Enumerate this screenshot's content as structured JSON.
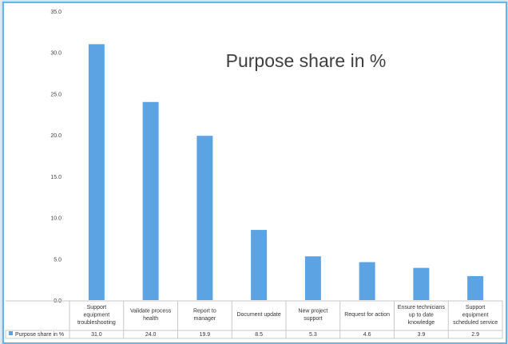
{
  "chart_data": {
    "type": "bar",
    "title": "Purpose share in %",
    "categories": [
      "Support equipment troubleshooting",
      "Validate process health",
      "Report to manager",
      "Document update",
      "New project support",
      "Request for action",
      "Ensure technicians up to date knowledge",
      "Support equipment scheduled  service"
    ],
    "category_lines": [
      [
        "Support",
        "equipment",
        "troubleshooting"
      ],
      [
        "Validate process",
        "health"
      ],
      [
        "Report to",
        "manager"
      ],
      [
        "Document update"
      ],
      [
        "New project",
        "support"
      ],
      [
        "Request for action"
      ],
      [
        "Ensure technicians",
        "up to date",
        "knowledge"
      ],
      [
        "Support",
        "equipment",
        "scheduled  service"
      ]
    ],
    "series": [
      {
        "name": "Purpose share in %",
        "values": [
          31.0,
          24.0,
          19.9,
          8.5,
          5.3,
          4.6,
          3.9,
          2.9
        ]
      }
    ],
    "value_labels": [
      "31.0",
      "24.0",
      "19.9",
      "8.5",
      "5.3",
      "4.6",
      "3.9",
      "2.9"
    ],
    "y_ticks": [
      "0.0",
      "5.0",
      "10.0",
      "15.0",
      "20.0",
      "25.0",
      "30.0",
      "35.0"
    ],
    "ylim": [
      0,
      35
    ],
    "xlabel": "",
    "ylabel": "",
    "grid": false,
    "legend": "data-table",
    "bar_color": "#5ba3e2"
  }
}
